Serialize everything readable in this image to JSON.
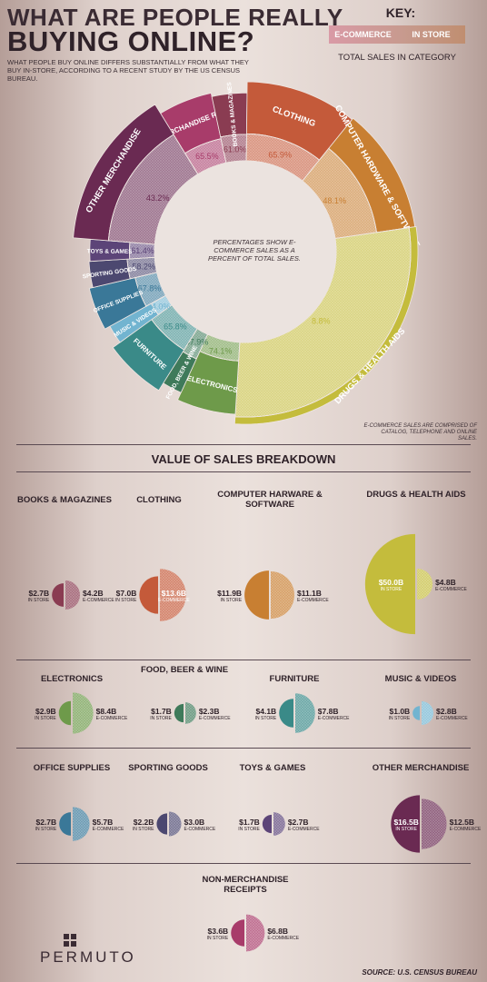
{
  "header": {
    "title_line1": "WHAT ARE PEOPLE REALLY",
    "title_line2": "BUYING ONLINE?",
    "subtitle": "WHAT PEOPLE BUY ONLINE DIFFERS SUBSTANTIALLY FROM WHAT THEY BUY IN-STORE, ACCORDING TO A RECENT STUDY BY THE US CENSUS BUREAU."
  },
  "key": {
    "title": "KEY:",
    "ecommerce": "E-COMMERCE",
    "in_store": "IN STORE",
    "total": "TOTAL SALES IN CATEGORY"
  },
  "donut": {
    "center_note": "PERCENTAGES SHOW E-COMMERCE SALES AS A PERCENT OF TOTAL SALES.",
    "footnote": "E-COMMERCE SALES ARE COMPRISED OF CATALOG, TELEPHONE AND ONLINE SALES."
  },
  "breakdown": {
    "title": "VALUE OF SALES BREAKDOWN",
    "in_store_small": "IN STORE",
    "ecommerce_small": "E-COMMERCE"
  },
  "footer": {
    "logo": "PERMUTO",
    "source": "SOURCE: U.S. CENSUS BUREAU"
  },
  "colors": {
    "books": "#8a3c52",
    "clothing": "#c45a3a",
    "computer": "#c87f32",
    "drugs": "#c4bc3c",
    "electronics": "#6e9a4a",
    "food": "#3f7a5a",
    "furniture": "#3a8a88",
    "music": "#72b4d0",
    "office": "#3a7898",
    "sporting": "#4c4870",
    "toys": "#5c4478",
    "other": "#6a2a52",
    "nonmerch": "#a83c6a"
  },
  "chart_data": [
    {
      "type": "pie",
      "title": "",
      "categories": [
        "NON-MERCHANDISE RECEIPTS",
        "BOOKS & MAGAZINES",
        "CLOTHING",
        "COMPUTER HARDWARE & SOFTWARE",
        "DRUGS & HEALTH AIDS",
        "ELECTRONICS",
        "FOOD, BEER & WINE",
        "FURNITURE",
        "MUSIC & VIDEOS",
        "OFFICE SUPPLIES",
        "SPORTING GOODS",
        "TOYS & GAMES",
        "OTHER MERCHANDISE"
      ],
      "labels": [
        "NON-MERCHANDISE RECEIPTS",
        "BOOKS & MAGAZINES",
        "CLOTHING",
        "COMPUTER HARDWARE & SOFTWARE",
        "DRUGS & HEALTH AIDS",
        "ELECTRONICS",
        "FOOD, BEER & WINE",
        "FURNITURE",
        "MUSIC & VIDEOS",
        "OFFICE SUPPLIES",
        "SPORTING GOODS",
        "TOYS & GAMES",
        "OTHER MERCHANDISE"
      ],
      "ecommerce_percent_labels": [
        "65.5%",
        "61.0%",
        "65.9%",
        "48.1%",
        "8.8%",
        "74.1%",
        "57.9%",
        "65.8%",
        "74.0%",
        "67.8%",
        "58.2%",
        "61.4%",
        "43.2%"
      ],
      "totals": [
        10.4,
        6.9,
        20.6,
        23.0,
        54.8,
        11.3,
        4.0,
        11.9,
        3.8,
        8.4,
        5.2,
        4.4,
        29.0
      ]
    },
    {
      "type": "bar",
      "title": "VALUE OF SALES BREAKDOWN",
      "categories": [
        "BOOKS & MAGAZINES",
        "CLOTHING",
        "COMPUTER HARWARE & SOFTWARE",
        "DRUGS & HEALTH AIDS",
        "ELECTRONICS",
        "FOOD, BEER & WINE",
        "FURNITURE",
        "MUSIC & VIDEOS",
        "OFFICE SUPPLIES",
        "SPORTING GOODS",
        "TOYS & GAMES",
        "OTHER MERCHANDISE",
        "NON-MERCHANDISE RECEIPTS"
      ],
      "series": [
        {
          "name": "IN STORE",
          "values": [
            2.7,
            7.0,
            11.9,
            50.0,
            2.9,
            1.7,
            4.1,
            1.0,
            2.7,
            2.2,
            1.7,
            16.5,
            3.6
          ],
          "labels": [
            "$2.7B",
            "$7.0B",
            "$11.9B",
            "$50.0B",
            "$2.9B",
            "$1.7B",
            "$4.1B",
            "$1.0B",
            "$2.7B",
            "$2.2B",
            "$1.7B",
            "$16.5B",
            "$3.6B"
          ]
        },
        {
          "name": "E-COMMERCE",
          "values": [
            4.2,
            13.6,
            11.1,
            4.8,
            8.4,
            2.3,
            7.8,
            2.8,
            5.7,
            3.0,
            2.7,
            12.5,
            6.8
          ],
          "labels": [
            "$4.2B",
            "$13.6B",
            "$11.1B",
            "$4.8B",
            "$8.4B",
            "$2.3B",
            "$7.8B",
            "$2.8B",
            "$5.7B",
            "$3.0B",
            "$2.7B",
            "$12.5B",
            "$6.8B"
          ]
        }
      ]
    }
  ]
}
